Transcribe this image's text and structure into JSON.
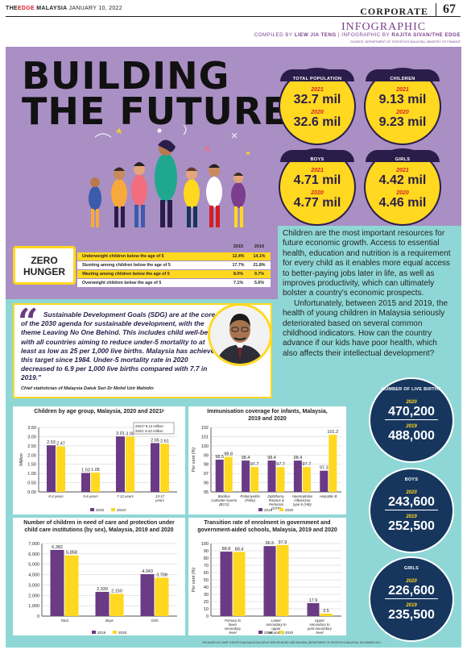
{
  "header": {
    "publication_prefix": "THE",
    "publication_name": "EDGE",
    "publication_suffix": "MALAYSIA",
    "date": "JANUARY 10, 2022",
    "section": "CORPORATE",
    "page_number": "67",
    "infographic_title": "INFOGRAPHIC",
    "compiled_by_label": "COMPILED BY",
    "compiled_by_name": "LIEW JIA TENG",
    "infographic_by_label": "INFOGRAPHIC BY",
    "infographic_by_name": "RAJITA SIVAN/THE EDGE",
    "source": "SOURCE: DEPARTMENT OF STATISTICS MALAYSIA, MINISTRY OF FINANCE"
  },
  "title": {
    "line1": "BUILDING",
    "line2": "THE FUTURE"
  },
  "stat_circles": [
    {
      "label": "TOTAL POPULATION",
      "year1": "2021",
      "value1": "32.7 mil",
      "year2": "2020",
      "value2": "32.6 mil"
    },
    {
      "label": "CHILDREN",
      "year1": "2021",
      "value1": "9.13 mil",
      "year2": "2020",
      "value2": "9.23 mil"
    },
    {
      "label": "BOYS",
      "year1": "2021",
      "value1": "4.71 mil",
      "year2": "2020",
      "value2": "4.77 mil"
    },
    {
      "label": "GIRLS",
      "year1": "2021",
      "value1": "4.42 mil",
      "year2": "2020",
      "value2": "4.46 mil"
    }
  ],
  "zero_hunger": {
    "label_line1": "ZERO",
    "label_line2": "HUNGER",
    "col1": "2015",
    "col2": "2019",
    "rows": [
      {
        "label": "Underweight children below the age of 5",
        "v2015": "12.4%",
        "v2019": "14.1%"
      },
      {
        "label": "Stunting among children below the age of 5",
        "v2015": "17.7%",
        "v2019": "21.8%"
      },
      {
        "label": "Wasting among children below the age of 5",
        "v2015": "8.0%",
        "v2019": "9.7%"
      },
      {
        "label": "Overweight children below the age of 5",
        "v2015": "7.1%",
        "v2019": "5.6%"
      }
    ]
  },
  "paragraph": {
    "p1": "Children are the most important resources for future economic growth. Access to essential health, education and nutrition is a requirement for every child as it enables more equal access to better-paying jobs later in life, as well as improves productivity, which can ultimately bolster a country's economic prospects.",
    "p2": "Unfortunately, between 2015 and 2019, the health of young children in Malaysia seriously deteriorated based on several common childhood indicators. How can the country advance if our kids have poor health, which also affects their intellectual development?"
  },
  "quote": {
    "text": "Sustainable Development Goals (SDG) are at the core of the 2030 agenda for sustainable development, with the theme Leaving No One Behind. This includes child well-being, with all countries aiming to reduce under-5 mortality to at least as low as 25 per 1,000 live births. Malaysia has achieved this target since 1984. Under-5 mortality rate in 2020 decreased to 6.9 per 1,000 live births compared with 7.7 in 2019.\"",
    "attribution": "Chief statistician of Malaysia Datuk Seri Dr Mohd Uzir Mahidin"
  },
  "side_stats": [
    {
      "label": "NUMBER OF LIVE BIRTHS",
      "year1": "2020",
      "value1": "470,200",
      "year2": "2019",
      "value2": "488,000"
    },
    {
      "label": "BOYS",
      "year1": "2020",
      "value1": "243,600",
      "year2": "2019",
      "value2": "252,500"
    },
    {
      "label": "GIRLS",
      "year1": "2020",
      "value1": "226,600",
      "year2": "2019",
      "value2": "235,500"
    }
  ],
  "colors": {
    "series_2020": "#6a3a84",
    "series_2021": "#ffd81f",
    "series_2019": "#6a3a84",
    "purple_bg": "#a98fc3",
    "teal_bg": "#8fd7d6",
    "navy": "#16365e"
  },
  "footer": "RELEASED BY CHIEF STATISTICIAN MALAYSIA DATUK SERI DR MOHD UZIR MAHIDIN, DEPARTMENT OF STATISTICS MALAYSIA, DECEMBER 2021",
  "chart_data": [
    {
      "type": "bar",
      "title": "Children by age group, Malaysia, 2020 and 2021ᵖ",
      "ylabel": "Million",
      "ylim": [
        0,
        3.5
      ],
      "yticks": [
        "0.00",
        "0.50",
        "1.00",
        "1.50",
        "2.00",
        "2.50",
        "3.00",
        "3.50"
      ],
      "categories": [
        "0-4 years",
        "5-6 years",
        "7-12 years",
        "13-17 years"
      ],
      "series": [
        {
          "name": "2020",
          "values": [
            2.53,
            1.03,
            3.01,
            2.65
          ],
          "labels": [
            "2.53",
            "1.03",
            "3.01",
            "2.65"
          ]
        },
        {
          "name": "2021ᵖ",
          "values": [
            2.47,
            1.05,
            3.0,
            2.61
          ],
          "labels": [
            "2.47",
            "1.05",
            "3.00",
            "2.61"
          ]
        }
      ],
      "note_line1": "2021ᵖ 9.13 million",
      "note_line2": "2020: 9.23 million"
    },
    {
      "type": "bar",
      "title": "Immunisation coverage for infants, Malaysia, 2019 and 2020",
      "ylabel": "Per cent (%)",
      "ylim": [
        95,
        102
      ],
      "yticks": [
        "95",
        "96",
        "97",
        "98",
        "99",
        "100",
        "101",
        "102"
      ],
      "categories": [
        "Bacillus Calmette-Guerin (BCG)",
        "Poliomyelitis (Polio)",
        "Diphtheria, Tetanus & Pertussis (DTP)",
        "Haemophilus influenzae type b (Hib)",
        "Hepatitis B"
      ],
      "series": [
        {
          "name": "2019",
          "values": [
            98.5,
            98.4,
            98.4,
            98.4,
            97.3
          ],
          "labels": [
            "98.5",
            "98.4",
            "98.4",
            "98.4",
            "97.3"
          ]
        },
        {
          "name": "2020",
          "values": [
            98.8,
            97.7,
            97.7,
            97.7,
            101.2
          ],
          "labels": [
            "98.8",
            "97.7",
            "97.7",
            "97.7",
            "101.2"
          ]
        }
      ]
    },
    {
      "type": "bar",
      "title": "Number of children in need of care and protection under child care institutions (by sex), Malaysia, 2019 and 2020",
      "ylabel": "",
      "ylim": [
        0,
        7000
      ],
      "yticks": [
        "0",
        "1,000",
        "2,000",
        "3,000",
        "4,000",
        "5,000",
        "6,000",
        "7,000"
      ],
      "categories": [
        "Total",
        "Boys",
        "Girls"
      ],
      "series": [
        {
          "name": "2019",
          "values": [
            6382,
            2339,
            4043
          ],
          "labels": [
            "6,382",
            "2,339",
            "4,043"
          ]
        },
        {
          "name": "2020",
          "values": [
            5858,
            2150,
            3708
          ],
          "labels": [
            "5,858",
            "2,150",
            "3,708"
          ]
        }
      ]
    },
    {
      "type": "bar",
      "title": "Transition rate of enrolment in government and government-aided schools, Malaysia, 2019 and 2020",
      "ylabel": "Per cent (%)",
      "ylim": [
        0,
        100
      ],
      "yticks": [
        "0",
        "10",
        "20",
        "30",
        "40",
        "50",
        "60",
        "70",
        "80",
        "90",
        "100"
      ],
      "categories": [
        "Primary to lower secondary level",
        "Lower secondary to upper secondary level",
        "Upper secondary to post-secondary level"
      ],
      "series": [
        {
          "name": "2019",
          "values": [
            88.8,
            96.5,
            17.9
          ],
          "labels": [
            "88.8",
            "96.5",
            "17.9"
          ]
        },
        {
          "name": "2020",
          "values": [
            88.4,
            97.9,
            3.5
          ],
          "labels": [
            "88.4",
            "97.9",
            "3.5"
          ]
        }
      ]
    }
  ]
}
